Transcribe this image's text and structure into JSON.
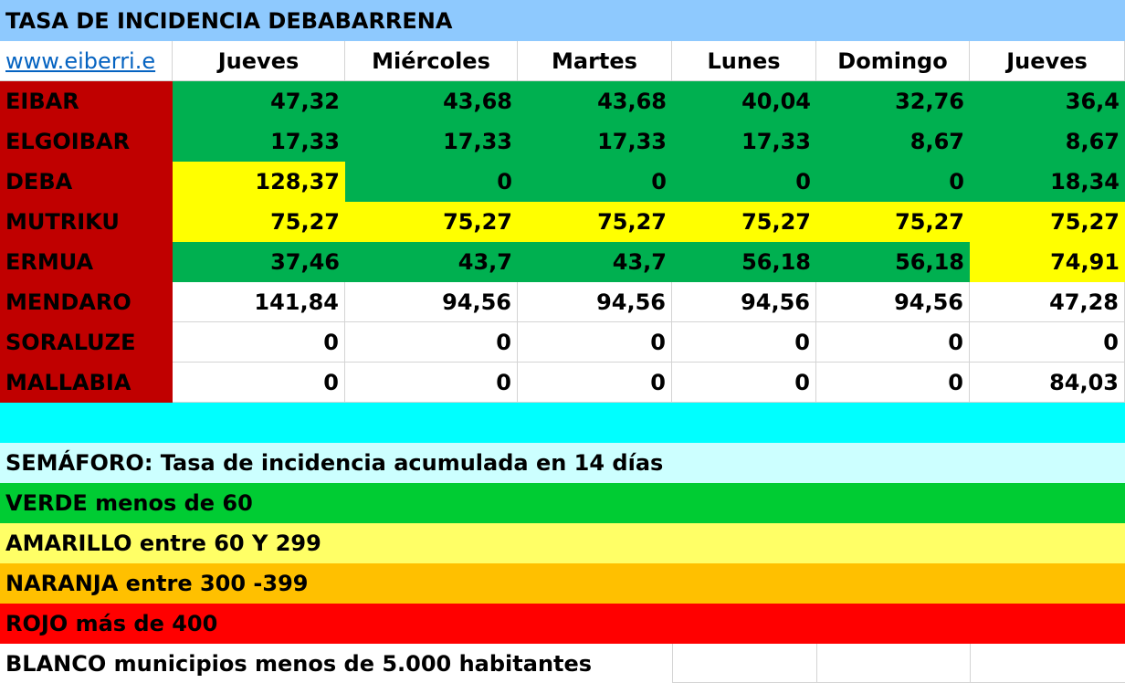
{
  "title": "TASA DE INCIDENCIA DEBABARRENA",
  "link_text": "www.eiberri.e",
  "columns": [
    "Jueves",
    "Miércoles",
    "Martes",
    "Lunes",
    "Domingo",
    "Jueves"
  ],
  "colors": {
    "title_bg": "#8ec9fe",
    "name_bg": "#c00000",
    "green": "#00b050",
    "yellow": "#ffff00",
    "white": "#ffffff",
    "cyan": "#00ffff",
    "legend_header_bg": "#ccffff",
    "legend_green": "#00cc33",
    "legend_yellow": "#ffff66",
    "legend_orange": "#ffc000",
    "legend_red": "#ff0000",
    "link": "#0563c1"
  },
  "rows": [
    {
      "name": "EIBAR",
      "values": [
        "47,32",
        "43,68",
        "43,68",
        "40,04",
        "32,76",
        "36,4"
      ],
      "colors": [
        "green",
        "green",
        "green",
        "green",
        "green",
        "green"
      ]
    },
    {
      "name": "ELGOIBAR",
      "values": [
        "17,33",
        "17,33",
        "17,33",
        "17,33",
        "8,67",
        "8,67"
      ],
      "colors": [
        "green",
        "green",
        "green",
        "green",
        "green",
        "green"
      ]
    },
    {
      "name": "DEBA",
      "values": [
        "128,37",
        "0",
        "0",
        "0",
        "0",
        "18,34"
      ],
      "colors": [
        "yellow",
        "green",
        "green",
        "green",
        "green",
        "green"
      ]
    },
    {
      "name": "MUTRIKU",
      "values": [
        "75,27",
        "75,27",
        "75,27",
        "75,27",
        "75,27",
        "75,27"
      ],
      "colors": [
        "yellow",
        "yellow",
        "yellow",
        "yellow",
        "yellow",
        "yellow"
      ]
    },
    {
      "name": "ERMUA",
      "values": [
        "37,46",
        "43,7",
        "43,7",
        "56,18",
        "56,18",
        "74,91"
      ],
      "colors": [
        "green",
        "green",
        "green",
        "green",
        "green",
        "yellow"
      ]
    },
    {
      "name": "MENDARO",
      "values": [
        "141,84",
        "94,56",
        "94,56",
        "94,56",
        "94,56",
        "47,28"
      ],
      "colors": [
        "white",
        "white",
        "white",
        "white",
        "white",
        "white"
      ]
    },
    {
      "name": "SORALUZE",
      "values": [
        "0",
        "0",
        "0",
        "0",
        "0",
        "0"
      ],
      "colors": [
        "white",
        "white",
        "white",
        "white",
        "white",
        "white"
      ]
    },
    {
      "name": "MALLABIA",
      "values": [
        "0",
        "0",
        "0",
        "0",
        "0",
        "84,03"
      ],
      "colors": [
        "white",
        "white",
        "white",
        "white",
        "white",
        "white"
      ]
    }
  ],
  "legend": {
    "header": "SEMÁFORO:  Tasa de incidencia acumulada en 14 días",
    "items": [
      {
        "text": "VERDE menos de 60",
        "color": "legend_green"
      },
      {
        "text": "AMARILLO entre 60 Y 299",
        "color": "legend_yellow"
      },
      {
        "text": "NARANJA entre 300 -399",
        "color": "legend_orange"
      },
      {
        "text": "ROJO más de 400",
        "color": "legend_red"
      }
    ],
    "footer": "BLANCO municipios menos de 5.000 habitantes"
  }
}
